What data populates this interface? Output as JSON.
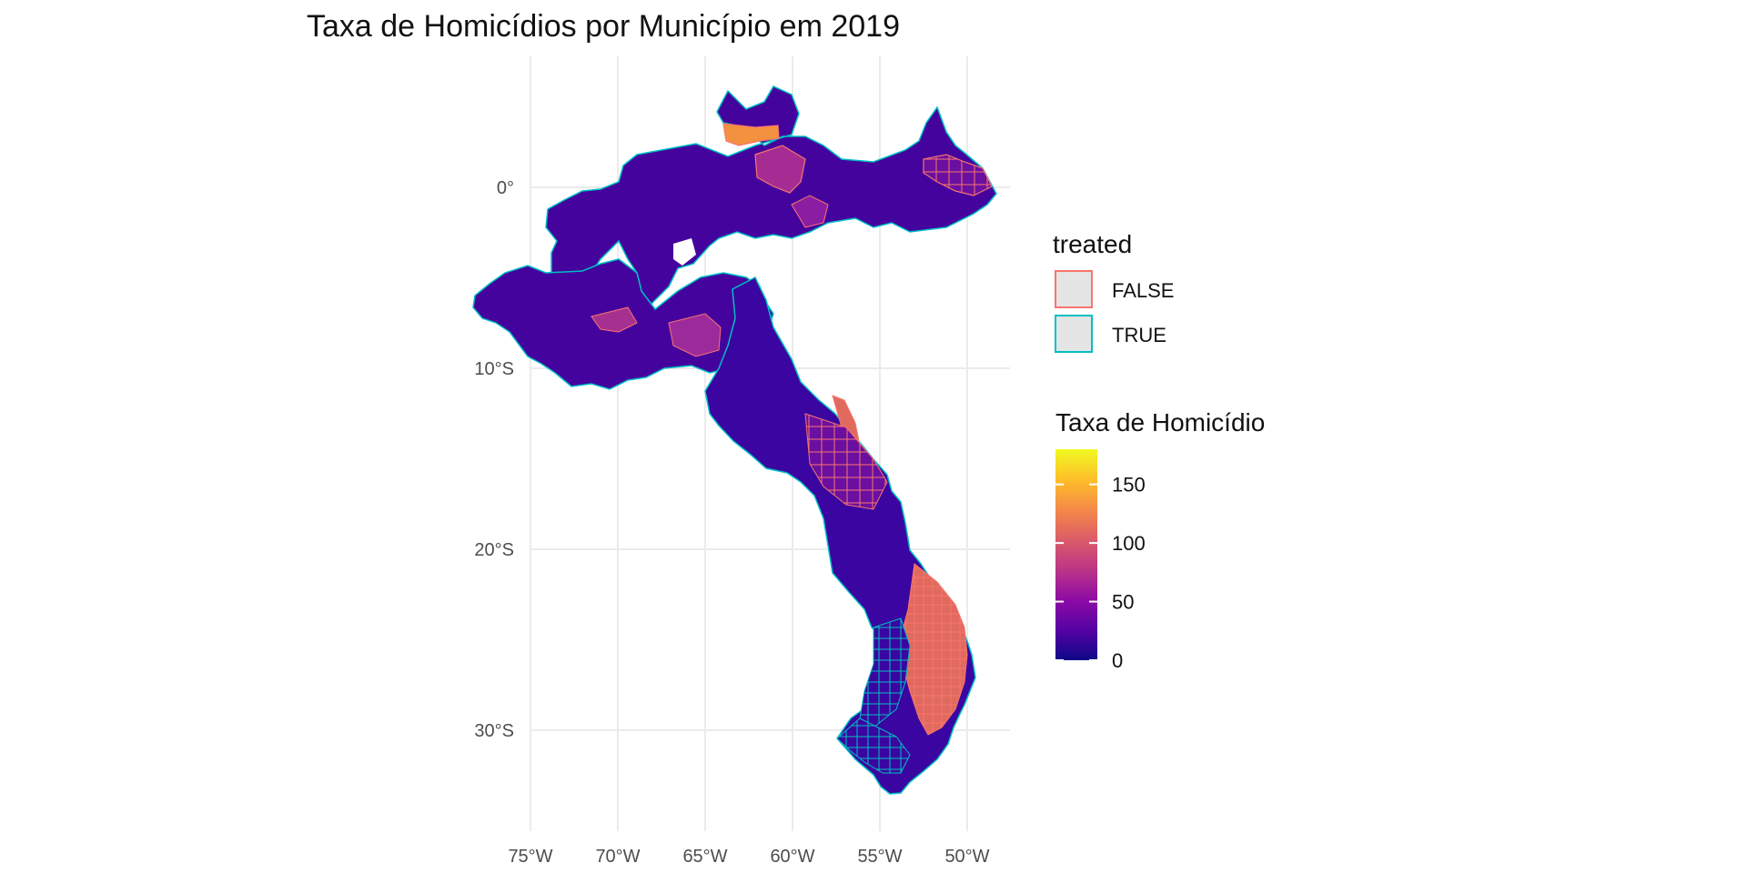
{
  "title": "Taxa de Homicídios por Município em 2019",
  "chart_data": {
    "type": "choropleth",
    "title": "Taxa de Homicídios por Município em 2019",
    "x_ticks": [
      "75°W",
      "70°W",
      "65°W",
      "60°W",
      "55°W",
      "50°W"
    ],
    "x_tick_values": [
      -75,
      -70,
      -65,
      -60,
      -55,
      -50
    ],
    "y_ticks": [
      "0°",
      "10°S",
      "20°S",
      "30°S"
    ],
    "y_tick_values": [
      0,
      -10,
      -20,
      -30
    ],
    "xlim": [
      -75,
      -49
    ],
    "ylim": [
      -35,
      5
    ],
    "grid": true,
    "legend_outline": {
      "title": "treated",
      "entries": [
        {
          "label": "FALSE",
          "color": "#f8766d"
        },
        {
          "label": "TRUE",
          "color": "#00bfc4"
        }
      ]
    },
    "legend_fill": {
      "title": "Taxa de Homicídio",
      "min": 0,
      "max": 180,
      "breaks": [
        0,
        50,
        100,
        150
      ],
      "break_labels": [
        "0",
        "50",
        "100",
        "150"
      ],
      "palette": [
        "#0d0887",
        "#5402a3",
        "#8b0aa5",
        "#b93289",
        "#db5c68",
        "#f48849",
        "#febc2a",
        "#f0f921"
      ]
    }
  }
}
